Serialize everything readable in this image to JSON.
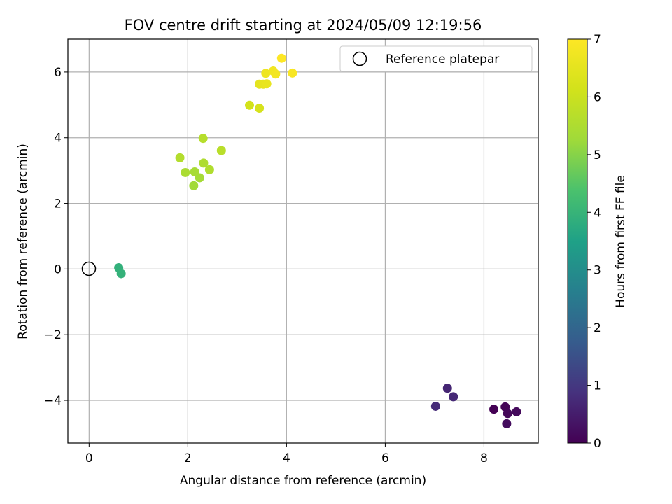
{
  "chart_data": {
    "type": "scatter",
    "title": "FOV centre drift starting at 2024/05/09 12:19:56",
    "xlabel": "Angular distance from reference (arcmin)",
    "ylabel": "Rotation from reference (arcmin)",
    "xlim": [
      -0.43,
      9.1
    ],
    "ylim": [
      -5.3,
      7.0
    ],
    "xticks": [
      0,
      2,
      4,
      6,
      8
    ],
    "yticks": [
      -4,
      -2,
      0,
      2,
      4,
      6
    ],
    "xtick_labels": [
      "0",
      "2",
      "4",
      "6",
      "8"
    ],
    "ytick_labels": [
      "−4",
      "−2",
      "0",
      "2",
      "4",
      "6"
    ],
    "grid": true,
    "legend": {
      "position": "top-right",
      "entries": [
        {
          "label": "Reference platepar",
          "marker": "open-circle"
        }
      ]
    },
    "reference_point": {
      "x": 0,
      "y": 0
    },
    "colorbar": {
      "label": "Hours from first FF file",
      "colormap": "viridis",
      "range": [
        0,
        7
      ],
      "ticks": [
        0,
        1,
        2,
        3,
        4,
        5,
        6,
        7
      ],
      "tick_labels": [
        "0",
        "1",
        "2",
        "3",
        "4",
        "5",
        "6",
        "7"
      ]
    },
    "points": [
      {
        "x": 8.2,
        "y": -4.27,
        "hours": 0.0
      },
      {
        "x": 8.43,
        "y": -4.2,
        "hours": 0.05
      },
      {
        "x": 8.48,
        "y": -4.4,
        "hours": 0.1
      },
      {
        "x": 8.66,
        "y": -4.35,
        "hours": 0.15
      },
      {
        "x": 8.46,
        "y": -4.71,
        "hours": 0.2
      },
      {
        "x": 7.26,
        "y": -3.63,
        "hours": 0.65
      },
      {
        "x": 7.38,
        "y": -3.89,
        "hours": 0.7
      },
      {
        "x": 7.02,
        "y": -4.18,
        "hours": 0.75
      },
      {
        "x": 0.6,
        "y": 0.04,
        "hours": 3.9
      },
      {
        "x": 0.65,
        "y": -0.14,
        "hours": 3.95
      },
      {
        "x": 2.12,
        "y": 2.54,
        "hours": 5.3
      },
      {
        "x": 2.24,
        "y": 2.78,
        "hours": 5.35
      },
      {
        "x": 2.14,
        "y": 2.96,
        "hours": 5.4
      },
      {
        "x": 1.95,
        "y": 2.94,
        "hours": 5.45
      },
      {
        "x": 2.32,
        "y": 3.23,
        "hours": 5.5
      },
      {
        "x": 2.44,
        "y": 3.03,
        "hours": 5.55
      },
      {
        "x": 1.84,
        "y": 3.39,
        "hours": 5.6
      },
      {
        "x": 2.31,
        "y": 3.98,
        "hours": 5.65
      },
      {
        "x": 2.68,
        "y": 3.61,
        "hours": 5.7
      },
      {
        "x": 3.25,
        "y": 4.99,
        "hours": 6.15
      },
      {
        "x": 3.45,
        "y": 4.9,
        "hours": 6.2
      },
      {
        "x": 3.45,
        "y": 5.63,
        "hours": 6.5
      },
      {
        "x": 3.53,
        "y": 5.63,
        "hours": 6.55
      },
      {
        "x": 3.6,
        "y": 5.64,
        "hours": 6.6
      },
      {
        "x": 3.58,
        "y": 5.96,
        "hours": 6.7
      },
      {
        "x": 3.73,
        "y": 6.03,
        "hours": 6.75
      },
      {
        "x": 3.78,
        "y": 5.94,
        "hours": 6.8
      },
      {
        "x": 4.12,
        "y": 5.97,
        "hours": 6.9
      },
      {
        "x": 3.9,
        "y": 6.42,
        "hours": 7.0
      }
    ]
  }
}
